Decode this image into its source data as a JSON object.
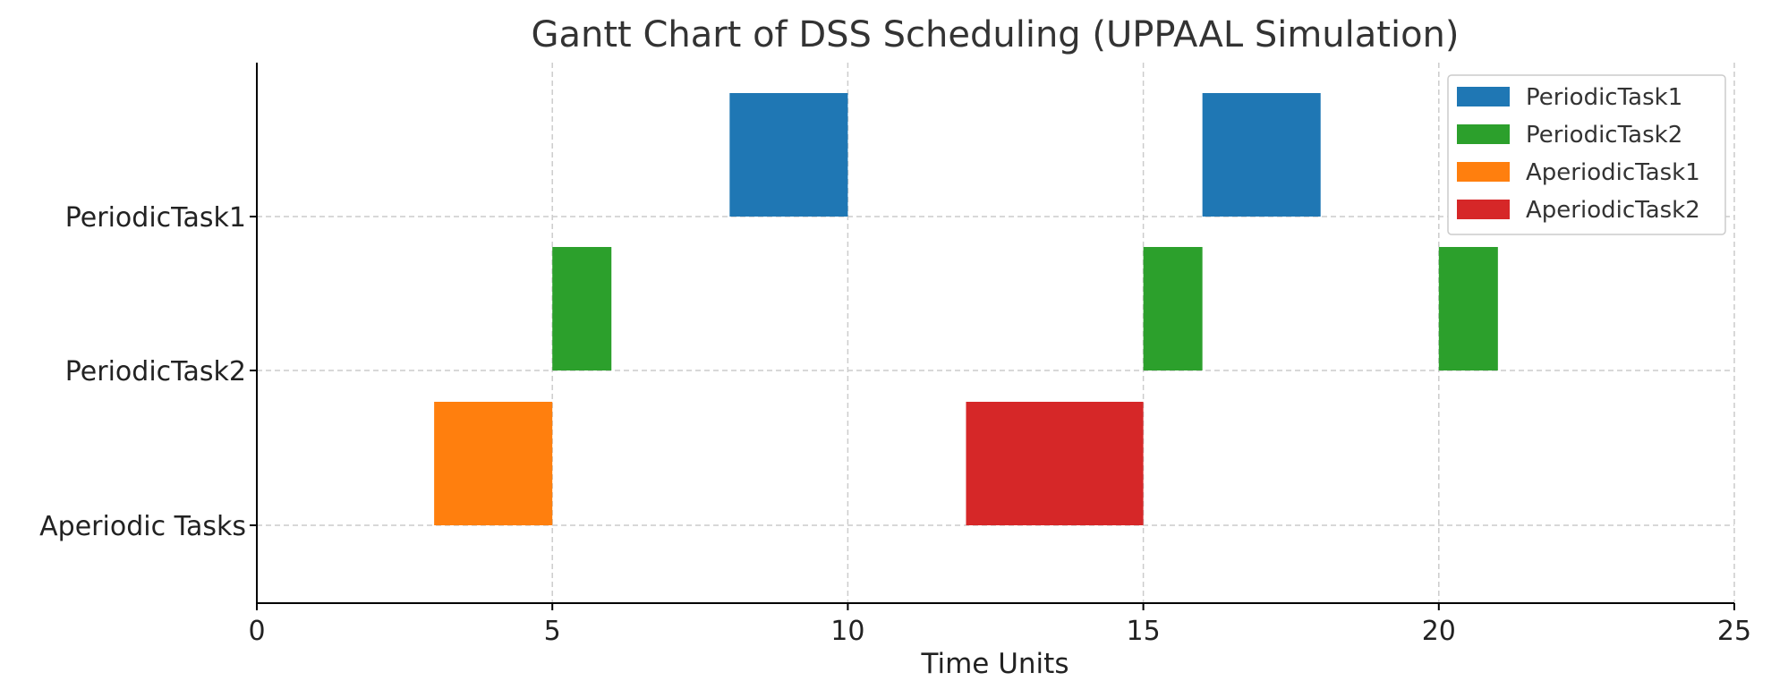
{
  "chart_data": {
    "type": "gantt",
    "title": "Gantt Chart of DSS Scheduling (UPPAAL Simulation)",
    "xlabel": "Time Units",
    "ylabel": "",
    "xlim": [
      0,
      25
    ],
    "xticks": [
      0,
      5,
      10,
      15,
      20,
      25
    ],
    "rows": [
      "PeriodicTask1",
      "PeriodicTask2",
      "Aperiodic Tasks"
    ],
    "grid": true,
    "legend_position": "top-right",
    "series": [
      {
        "name": "PeriodicTask1",
        "color": "#1f77b4",
        "row": "PeriodicTask1",
        "intervals": [
          [
            8,
            10
          ],
          [
            16,
            18
          ]
        ]
      },
      {
        "name": "PeriodicTask2",
        "color": "#2ca02c",
        "row": "PeriodicTask2",
        "intervals": [
          [
            5,
            6
          ],
          [
            15,
            16
          ],
          [
            20,
            21
          ]
        ]
      },
      {
        "name": "AperiodicTask1",
        "color": "#ff7f0e",
        "row": "Aperiodic Tasks",
        "intervals": [
          [
            3,
            5
          ]
        ]
      },
      {
        "name": "AperiodicTask2",
        "color": "#d62728",
        "row": "Aperiodic Tasks",
        "intervals": [
          [
            12,
            15
          ]
        ]
      }
    ]
  }
}
